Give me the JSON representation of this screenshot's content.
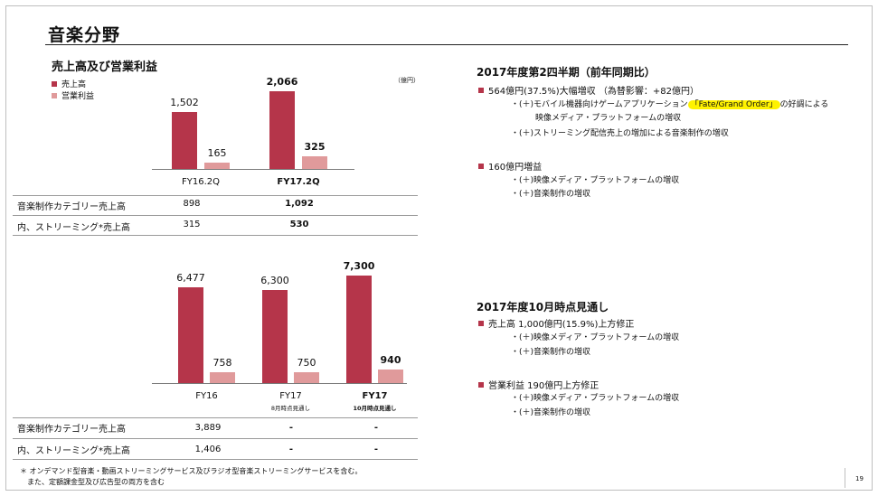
{
  "page": {
    "title": "音楽分野",
    "page_number": "19",
    "footnote_lines": [
      "＊ オンデマンド型音楽・動画ストリーミングサービス及びラジオ型音楽ストリーミングサービスを含む。",
      "　また、定額課金型及び広告型の両方を含む"
    ]
  },
  "colors": {
    "sales": "#b5354a",
    "op": "#e09a9b"
  },
  "left": {
    "section_title": "売上高及び営業利益",
    "legend": {
      "sales": "売上高",
      "op": "営業利益"
    },
    "unit": "（億円）",
    "table1": {
      "rows": [
        {
          "label": "音楽制作カテゴリー売上高",
          "values": [
            "898",
            "1,092"
          ]
        },
        {
          "label": "内、ストリーミング*売上高",
          "values": [
            "315",
            "530"
          ]
        }
      ]
    },
    "table2": {
      "rows": [
        {
          "label": "音楽制作カテゴリー売上高",
          "values": [
            "3,889",
            "-",
            "-"
          ]
        },
        {
          "label": "内、ストリーミング*売上高",
          "values": [
            "1,406",
            "-",
            "-"
          ]
        }
      ]
    }
  },
  "chart_data": [
    {
      "type": "bar",
      "title": "売上高及び営業利益",
      "unit": "億円",
      "categories": [
        "FY16.2Q",
        "FY17.2Q"
      ],
      "category_sub": [
        "",
        ""
      ],
      "bold": [
        false,
        true
      ],
      "series": [
        {
          "name": "売上高",
          "values": [
            1502,
            2066
          ],
          "labels": [
            "1,502",
            "2,066"
          ]
        },
        {
          "name": "営業利益",
          "values": [
            165,
            325
          ],
          "labels": [
            "165",
            "325"
          ]
        }
      ],
      "ylim": [
        0,
        2066
      ]
    },
    {
      "type": "bar",
      "title": "",
      "unit": "億円",
      "categories": [
        "FY16",
        "FY17",
        "FY17"
      ],
      "category_sub": [
        "",
        "8月時点見通し",
        "10月時点見通し"
      ],
      "bold": [
        false,
        false,
        true
      ],
      "series": [
        {
          "name": "売上高",
          "values": [
            6477,
            6300,
            7300
          ],
          "labels": [
            "6,477",
            "6,300",
            "7,300"
          ]
        },
        {
          "name": "営業利益",
          "values": [
            758,
            750,
            940
          ],
          "labels": [
            "758",
            "750",
            "940"
          ]
        }
      ],
      "ylim": [
        0,
        7300
      ]
    }
  ],
  "right": {
    "q2": {
      "heading": "2017年度第2四半期（前年同期比）",
      "sales_bullet": "564億円(37.5%)大幅増収 （為替影響：+82億円）",
      "sales_line1_pre": "・(＋)モバイル機器向けゲームアプリケーション",
      "sales_line1_hl": "「Fate/Grand Order」",
      "sales_line1_post": "の好調による",
      "sales_line1_cont": "映像メディア・プラットフォームの増収",
      "sales_line2": "・(＋)ストリーミング配信売上の増加による音楽制作の増収",
      "op_bullet": "160億円増益",
      "op_line1": "・(＋)映像メディア・プラットフォームの増収",
      "op_line2": "・(＋)音楽制作の増収"
    },
    "oct": {
      "heading": "2017年度10月時点見通し",
      "sales_bullet": "売上高 1,000億円(15.9%)上方修正",
      "sales_line1": "・(＋)映像メディア・プラットフォームの増収",
      "sales_line2": "・(＋)音楽制作の増収",
      "op_bullet": "営業利益 190億円上方修正",
      "op_line1": "・(＋)映像メディア・プラットフォームの増収",
      "op_line2": "・(＋)音楽制作の増収"
    }
  }
}
